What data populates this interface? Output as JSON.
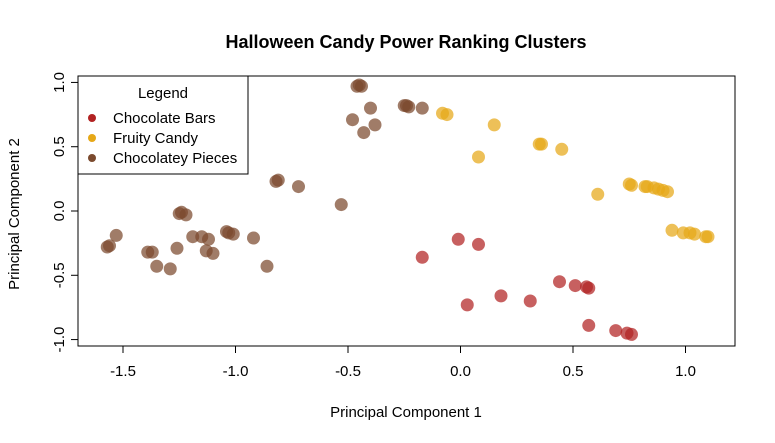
{
  "chart_data": {
    "type": "scatter",
    "title": "Halloween Candy Power Ranking Clusters",
    "xlabel": "Principal Component 1",
    "ylabel": "Principal Component 2",
    "xlim": [
      -1.7,
      1.22
    ],
    "ylim": [
      -1.05,
      1.05
    ],
    "x_ticks": [
      -1.5,
      -1.0,
      -0.5,
      0.0,
      0.5,
      1.0
    ],
    "y_ticks": [
      -1.0,
      -0.5,
      0.0,
      0.5,
      1.0
    ],
    "x_tick_labels": [
      "-1.5",
      "-1.0",
      "-0.5",
      "0.0",
      "0.5",
      "1.0"
    ],
    "y_tick_labels": [
      "-1.0",
      "-0.5",
      "0.0",
      "0.5",
      "1.0"
    ],
    "grid": false,
    "legend": {
      "title": "Legend",
      "position": "top-left"
    },
    "series": [
      {
        "name": "Chocolate Bars",
        "color": "#b22222",
        "points": [
          [
            -0.17,
            -0.36
          ],
          [
            -0.01,
            -0.22
          ],
          [
            0.08,
            -0.26
          ],
          [
            0.03,
            -0.73
          ],
          [
            0.18,
            -0.66
          ],
          [
            0.31,
            -0.7
          ],
          [
            0.44,
            -0.55
          ],
          [
            0.51,
            -0.58
          ],
          [
            0.56,
            -0.59
          ],
          [
            0.57,
            -0.6
          ],
          [
            0.57,
            -0.89
          ],
          [
            0.69,
            -0.93
          ],
          [
            0.74,
            -0.95
          ],
          [
            0.76,
            -0.96
          ]
        ]
      },
      {
        "name": "Fruity Candy",
        "color": "#e6a817",
        "points": [
          [
            -0.08,
            0.76
          ],
          [
            -0.06,
            0.75
          ],
          [
            0.08,
            0.42
          ],
          [
            0.15,
            0.67
          ],
          [
            0.35,
            0.52
          ],
          [
            0.36,
            0.52
          ],
          [
            0.45,
            0.48
          ],
          [
            0.61,
            0.13
          ],
          [
            0.75,
            0.21
          ],
          [
            0.76,
            0.2
          ],
          [
            0.82,
            0.19
          ],
          [
            0.83,
            0.19
          ],
          [
            0.86,
            0.18
          ],
          [
            0.88,
            0.17
          ],
          [
            0.9,
            0.16
          ],
          [
            0.92,
            0.15
          ],
          [
            0.94,
            -0.15
          ],
          [
            0.99,
            -0.17
          ],
          [
            1.02,
            -0.17
          ],
          [
            1.04,
            -0.18
          ],
          [
            1.09,
            -0.2
          ],
          [
            1.1,
            -0.2
          ]
        ]
      },
      {
        "name": "Chocolatey Pieces",
        "color": "#7b4a2e",
        "points": [
          [
            -1.56,
            -0.27
          ],
          [
            -1.57,
            -0.28
          ],
          [
            -1.53,
            -0.19
          ],
          [
            -1.39,
            -0.32
          ],
          [
            -1.37,
            -0.32
          ],
          [
            -1.35,
            -0.43
          ],
          [
            -1.29,
            -0.45
          ],
          [
            -1.26,
            -0.29
          ],
          [
            -1.25,
            -0.02
          ],
          [
            -1.24,
            -0.01
          ],
          [
            -1.22,
            -0.03
          ],
          [
            -1.19,
            -0.2
          ],
          [
            -1.15,
            -0.2
          ],
          [
            -1.13,
            -0.31
          ],
          [
            -1.12,
            -0.22
          ],
          [
            -1.1,
            -0.33
          ],
          [
            -1.04,
            -0.16
          ],
          [
            -1.03,
            -0.17
          ],
          [
            -1.01,
            -0.18
          ],
          [
            -0.92,
            -0.21
          ],
          [
            -0.86,
            -0.43
          ],
          [
            -0.82,
            0.23
          ],
          [
            -0.81,
            0.24
          ],
          [
            -0.72,
            0.19
          ],
          [
            -0.53,
            0.05
          ],
          [
            -0.48,
            0.71
          ],
          [
            -0.46,
            0.97
          ],
          [
            -0.45,
            0.98
          ],
          [
            -0.44,
            0.97
          ],
          [
            -0.43,
            0.61
          ],
          [
            -0.4,
            0.8
          ],
          [
            -0.38,
            0.67
          ],
          [
            -0.25,
            0.82
          ],
          [
            -0.24,
            0.82
          ],
          [
            -0.23,
            0.81
          ],
          [
            -0.17,
            0.8
          ]
        ]
      }
    ]
  }
}
